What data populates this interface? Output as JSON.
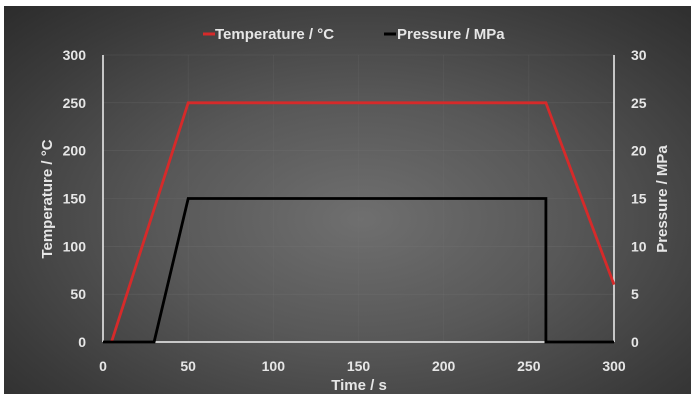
{
  "chart_data": {
    "type": "line",
    "xlabel": "Time / s",
    "ylabel_left": "Temperature / °C",
    "ylabel_right": "Pressure / MPa",
    "xlim": [
      0,
      300
    ],
    "ylim_left": [
      0,
      300
    ],
    "ylim_right": [
      0,
      30
    ],
    "x_ticks": [
      "0",
      "50",
      "100",
      "150",
      "200",
      "250",
      "300"
    ],
    "y_left_ticks": [
      "0",
      "50",
      "100",
      "150",
      "200",
      "250",
      "300"
    ],
    "y_right_ticks": [
      "0",
      "5",
      "10",
      "15",
      "20",
      "25",
      "30"
    ],
    "grid": true,
    "legend_position": "top-center",
    "series": [
      {
        "name": "Temperature / °C",
        "axis": "left",
        "color": "#d62a2a",
        "x": [
          5,
          50,
          260,
          300
        ],
        "y": [
          0,
          250,
          250,
          60
        ]
      },
      {
        "name": "Pressure / MPa",
        "axis": "right",
        "color": "#000000",
        "x": [
          0,
          30,
          50,
          260,
          260,
          300
        ],
        "y": [
          0,
          0,
          15,
          15,
          0,
          0
        ]
      }
    ]
  }
}
